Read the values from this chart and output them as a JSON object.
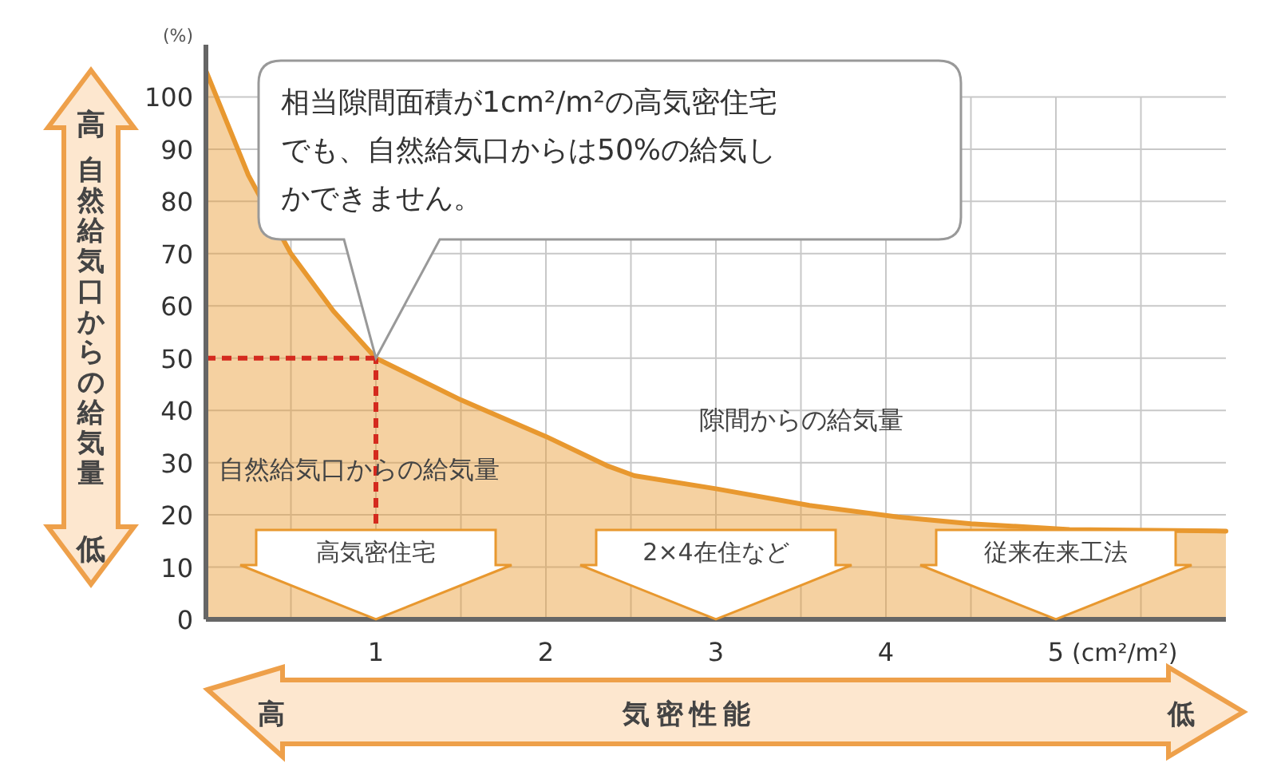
{
  "chart_data": {
    "type": "area",
    "xlabel": "気密性能",
    "ylabel": "自然給気口からの給気量",
    "x": [
      0,
      0.25,
      0.5,
      0.75,
      1,
      1.5,
      2,
      2.36,
      2.52,
      3,
      3.55,
      4.07,
      4.5,
      5.08,
      6
    ],
    "series": [
      {
        "color": "#e8982f",
        "values": [
          105,
          85,
          70,
          59,
          50,
          42,
          35,
          29.4,
          27.5,
          25,
          21.8,
          19.6,
          18.3,
          17.2,
          16.9
        ]
      }
    ],
    "xlim": [
      0,
      6
    ],
    "ylim": [
      0,
      110
    ],
    "xticks": [
      {
        "value": 0.5,
        "label": null
      },
      1,
      {
        "value": 1.5,
        "label": null
      },
      2,
      {
        "value": 2.5,
        "label": null
      },
      3,
      {
        "value": 3.5,
        "label": null
      },
      4,
      {
        "value": 4.5,
        "label": null
      },
      5,
      {
        "value": 5.5,
        "label": null
      }
    ],
    "yticks": [
      0,
      10,
      20,
      30,
      40,
      50,
      60,
      70,
      80,
      90,
      100
    ],
    "grid": true,
    "marker": "none",
    "line_style": "solid",
    "ref_lines": [
      {
        "axis": "y",
        "value": 50,
        "color": "#d42a1e",
        "line_style": "dashed"
      },
      {
        "axis": "x",
        "value": 1,
        "color": "#d42a1e",
        "line_style": "dashed"
      }
    ],
    "annotations": [
      "相当隙間面積が1cm²/m²の高気密住宅でも、自然給気口からは50%の給気しかできません。",
      "自然給気口からの給気量",
      "隙間からの給気量",
      {
        "text": "高気密住宅",
        "x": 1,
        "y": 0
      },
      {
        "text": "2×4在住など",
        "x": 3,
        "y": 0
      },
      {
        "text": "従来在来工法",
        "x": 5,
        "y": 0
      },
      "(%)",
      "(cm²/m²)",
      "高",
      "低",
      "高",
      "低"
    ]
  }
}
